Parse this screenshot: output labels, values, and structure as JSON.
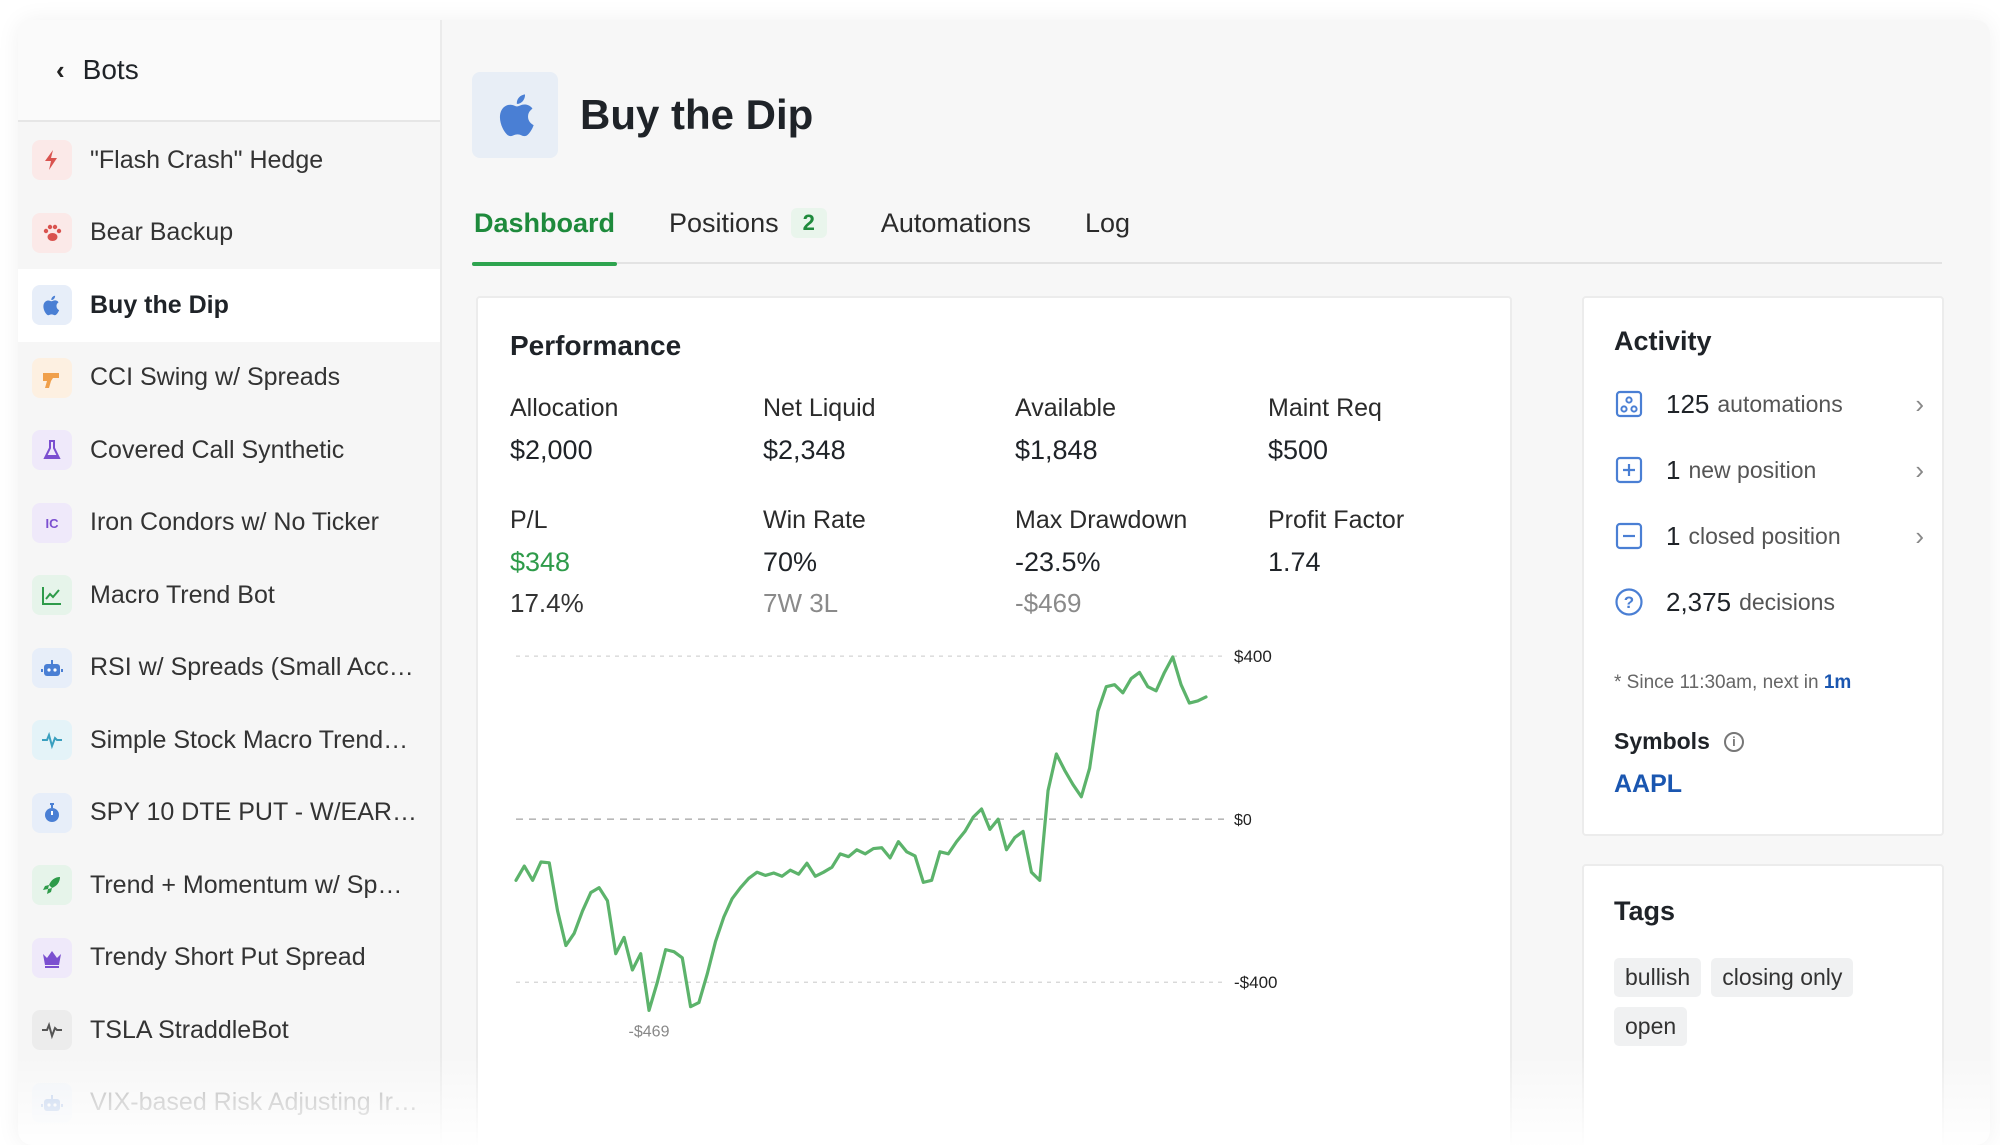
{
  "sidebar": {
    "back_label": "Bots",
    "items": [
      {
        "label": "\"Flash Crash\" Hedge",
        "icon": "lightning-icon",
        "color": "#d9534f",
        "bg": "#fbe9e8"
      },
      {
        "label": "Bear Backup",
        "icon": "paw-icon",
        "color": "#d9534f",
        "bg": "#fbe9e8"
      },
      {
        "label": "Buy the Dip",
        "icon": "apple-icon",
        "color": "#4a7fd4",
        "bg": "#e7eef9",
        "active": true
      },
      {
        "label": "CCI Swing w/ Spreads",
        "icon": "gun-icon",
        "color": "#f0a04b",
        "bg": "#fdf0e1"
      },
      {
        "label": "Covered Call Synthetic",
        "icon": "flask-icon",
        "color": "#7b4fd0",
        "bg": "#efe9fa"
      },
      {
        "label": "Iron Condors w/ No Ticker",
        "icon": "ic-icon",
        "color": "#7b4fd0",
        "bg": "#efe9fa"
      },
      {
        "label": "Macro Trend Bot",
        "icon": "trend-chart-icon",
        "color": "#2e9b4a",
        "bg": "#e6f4ea"
      },
      {
        "label": "RSI w/ Spreads (Small Acc…",
        "icon": "robot-icon",
        "color": "#4a7fd4",
        "bg": "#e7eef9"
      },
      {
        "label": "Simple Stock Macro Trend…",
        "icon": "pulse-icon",
        "color": "#3a9fbf",
        "bg": "#e4f3f8"
      },
      {
        "label": "SPY 10 DTE PUT - W/EARLY…",
        "icon": "stopwatch-icon",
        "color": "#4a7fd4",
        "bg": "#e7eef9"
      },
      {
        "label": "Trend + Momentum w/ Sp…",
        "icon": "rocket-icon",
        "color": "#2e9b4a",
        "bg": "#e6f4ea"
      },
      {
        "label": "Trendy Short Put Spread",
        "icon": "crown-icon",
        "color": "#7b4fd0",
        "bg": "#efe9fa"
      },
      {
        "label": "TSLA StraddleBot",
        "icon": "pulse-icon",
        "color": "#555555",
        "bg": "#ececec"
      },
      {
        "label": "VIX-based Risk Adjusting Ir…",
        "icon": "robot-icon",
        "color": "#4a7fd4",
        "bg": "#e7eef9"
      }
    ]
  },
  "bot": {
    "title": "Buy the Dip",
    "logo_icon": "apple-icon"
  },
  "tabs": [
    {
      "label": "Dashboard",
      "active": true
    },
    {
      "label": "Positions",
      "badge": "2"
    },
    {
      "label": "Automations"
    },
    {
      "label": "Log"
    }
  ],
  "performance": {
    "title": "Performance",
    "stats": {
      "allocation": {
        "label": "Allocation",
        "value": "$2,000"
      },
      "net_liquid": {
        "label": "Net Liquid",
        "value": "$2,348"
      },
      "available": {
        "label": "Available",
        "value": "$1,848"
      },
      "maint_req": {
        "label": "Maint Req",
        "value": "$500"
      },
      "pl": {
        "label": "P/L",
        "value": "$348",
        "sub": "17.4%"
      },
      "win_rate": {
        "label": "Win Rate",
        "value": "70%",
        "sub": "7W 3L"
      },
      "max_drawdown": {
        "label": "Max Drawdown",
        "value": "-23.5%",
        "sub": "-$469"
      },
      "profit_factor": {
        "label": "Profit Factor",
        "value": "1.74"
      }
    }
  },
  "chart_data": {
    "type": "line",
    "ylim": [
      -500,
      420
    ],
    "y_ticks": [
      {
        "value": 400,
        "label": "$400"
      },
      {
        "value": 0,
        "label": "$0"
      },
      {
        "value": -400,
        "label": "-$400"
      }
    ],
    "max_label": "$398",
    "min_label": "-$469",
    "color": "#5cb36b",
    "series": [
      {
        "values": [
          -150,
          -115,
          -150,
          -105,
          -107,
          -225,
          -310,
          -280,
          -225,
          -180,
          -168,
          -200,
          -330,
          -290,
          -370,
          -330,
          -469,
          -400,
          -320,
          -325,
          -340,
          -460,
          -450,
          -380,
          -300,
          -240,
          -195,
          -168,
          -145,
          -130,
          -138,
          -132,
          -140,
          -125,
          -135,
          -108,
          -140,
          -130,
          -118,
          -85,
          -92,
          -75,
          -85,
          -72,
          -70,
          -95,
          -55,
          -80,
          -90,
          -155,
          -150,
          -80,
          -85,
          -55,
          -30,
          5,
          25,
          -25,
          0,
          -75,
          -45,
          -30,
          -130,
          -150,
          70,
          160,
          120,
          85,
          55,
          125,
          265,
          325,
          330,
          310,
          345,
          360,
          325,
          315,
          360,
          398,
          330,
          285,
          290,
          300
        ]
      }
    ]
  },
  "activity": {
    "title": "Activity",
    "rows": [
      {
        "num": "125",
        "text": "automations",
        "icon": "automation-icon"
      },
      {
        "num": "1",
        "text": "new position",
        "icon": "plus-square-icon"
      },
      {
        "num": "1",
        "text": "closed position",
        "icon": "minus-square-icon"
      },
      {
        "num": "2,375",
        "text": "decisions",
        "icon": "question-circle-icon"
      }
    ],
    "note_prefix": "* Since 11:30am, next in ",
    "note_highlight": "1m",
    "symbols_label": "Symbols",
    "symbol": "AAPL"
  },
  "tags": {
    "title": "Tags",
    "items": [
      "bullish",
      "closing only",
      "open"
    ]
  },
  "colors": {
    "accent_green": "#2ea44f",
    "link_blue": "#1a56b0",
    "line_green": "#5cb36b"
  }
}
